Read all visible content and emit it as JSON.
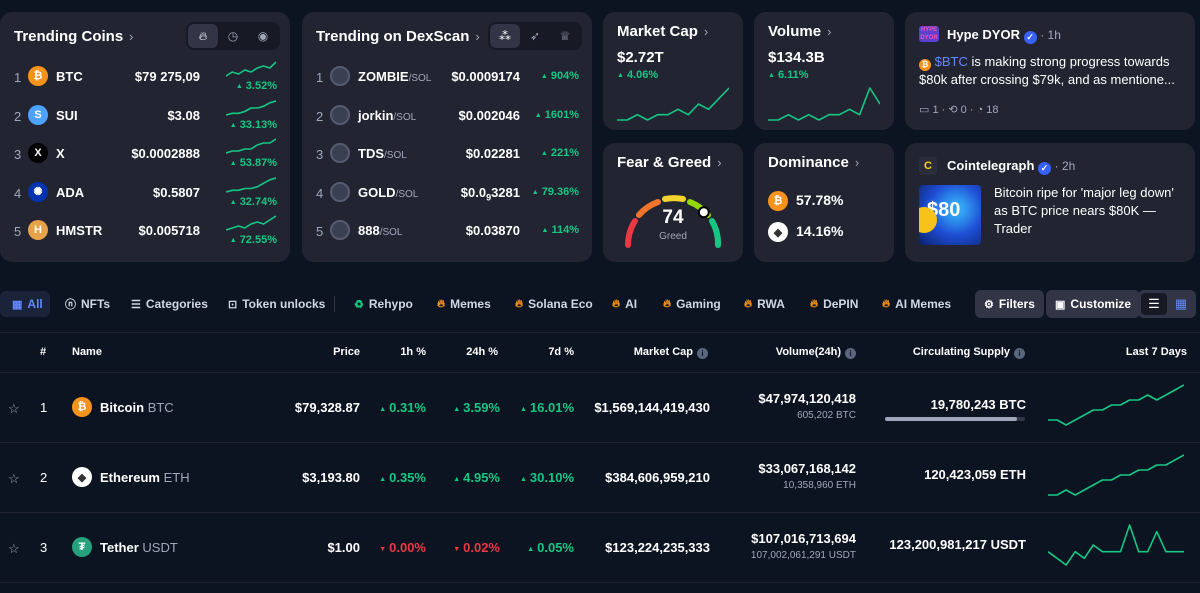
{
  "trending_coins": {
    "title": "Trending Coins",
    "tabs": [
      "flame-icon",
      "clock-icon",
      "eye-icon"
    ],
    "items": [
      {
        "rank": "1",
        "symbol": "BTC",
        "price": "$79 275,09",
        "change": "3.52%",
        "icon_color": "#f7931a",
        "icon_glyph": "₿",
        "spark": [
          2,
          4,
          3,
          5,
          4,
          6,
          7,
          6,
          9
        ]
      },
      {
        "rank": "2",
        "symbol": "SUI",
        "price": "$3.08",
        "change": "33.13%",
        "icon_color": "#4da2ff",
        "icon_glyph": "S",
        "spark": [
          1,
          2,
          2,
          3,
          5,
          5,
          6,
          8,
          9
        ]
      },
      {
        "rank": "3",
        "symbol": "X",
        "price": "$0.0002888",
        "change": "53.87%",
        "icon_color": "#000000",
        "icon_glyph": "X",
        "spark": [
          2,
          3,
          3,
          4,
          4,
          6,
          7,
          7,
          9
        ]
      },
      {
        "rank": "4",
        "symbol": "ADA",
        "price": "$0.5807",
        "change": "32.74%",
        "icon_color": "#0033ad",
        "icon_glyph": "✺",
        "spark": [
          1,
          2,
          2,
          3,
          3,
          4,
          6,
          8,
          9
        ]
      },
      {
        "rank": "5",
        "symbol": "HMSTR",
        "price": "$0.005718",
        "change": "72.55%",
        "icon_color": "#e8a24a",
        "icon_glyph": "H",
        "spark": [
          2,
          3,
          4,
          3,
          5,
          6,
          5,
          7,
          9
        ]
      }
    ]
  },
  "dexscan": {
    "title": "Trending on DexScan",
    "items": [
      {
        "rank": "1",
        "name": "ZOMBIE",
        "chain": "/SOL",
        "price": "$0.0009174",
        "change": "904%"
      },
      {
        "rank": "2",
        "name": "jorkin",
        "chain": "/SOL",
        "price": "$0.002046",
        "change": "1601%"
      },
      {
        "rank": "3",
        "name": "TDS",
        "chain": "/SOL",
        "price": "$0.02281",
        "change": "221%"
      },
      {
        "rank": "4",
        "name": "GOLD",
        "chain": "/SOL",
        "price": "$0.0",
        "price_sub": "9",
        "price_tail": "3281",
        "change": "79.36%"
      },
      {
        "rank": "5",
        "name": "888",
        "chain": "/SOL",
        "price": "$0.03870",
        "change": "114%"
      }
    ]
  },
  "market_cap": {
    "title": "Market Cap",
    "value": "$2.72T",
    "change": "4.06%",
    "spark": [
      3,
      3,
      4,
      3,
      4,
      4,
      5,
      4,
      6,
      5,
      7,
      9
    ]
  },
  "volume": {
    "title": "Volume",
    "value": "$134.3B",
    "change": "6.11%",
    "spark": [
      2,
      2,
      3,
      2,
      3,
      2,
      3,
      3,
      4,
      3,
      8,
      5
    ]
  },
  "fear_greed": {
    "title": "Fear & Greed",
    "value": "74",
    "label": "Greed",
    "level": 74
  },
  "dominance": {
    "title": "Dominance",
    "btc": "57.78%",
    "eth": "14.16%"
  },
  "news": [
    {
      "source": "Hype DYOR",
      "time": "· 1h",
      "tag": "$BTC",
      "text": " is making strong progress towards $80k after crossing $79k, and as mentione...",
      "comments": "1",
      "reposts": "0",
      "views": "18"
    },
    {
      "source": "Cointelegraph",
      "time": "· 2h",
      "text": "Bitcoin ripe for 'major leg down' as BTC price nears $80K — Trader",
      "thumb_text": "$80"
    }
  ],
  "filters": {
    "all": "All",
    "nfts": "NFTs",
    "categories": "Categories",
    "token_unlocks": "Token unlocks",
    "rehypo": "Rehypo",
    "memes": "Memes",
    "solana": "Solana Eco",
    "ai": "AI",
    "gaming": "Gaming",
    "rwa": "RWA",
    "depin": "DePIN",
    "ai_memes": "AI Memes",
    "filters_btn": "Filters",
    "customize_btn": "Customize"
  },
  "table": {
    "headers": {
      "rank": "#",
      "name": "Name",
      "price": "Price",
      "h1": "1h %",
      "h24": "24h %",
      "d7": "7d %",
      "mcap": "Market Cap",
      "vol": "Volume(24h)",
      "supply": "Circulating Supply",
      "last7": "Last 7 Days"
    },
    "rows": [
      {
        "rank": "1",
        "name": "Bitcoin",
        "symbol": "BTC",
        "price": "$79,328.87",
        "h1": "0.31%",
        "h1_dir": "up",
        "h24": "3.59%",
        "h24_dir": "up",
        "d7": "16.01%",
        "d7_dir": "up",
        "mcap": "$1,569,144,419,430",
        "vol": "$47,974,120,418",
        "vol_sub": "605,202 BTC",
        "supply": "19,780,243 BTC",
        "supply_fill": 0.94,
        "icon_color": "#f7931a",
        "icon_glyph": "₿",
        "spark": [
          3,
          3,
          2,
          3,
          4,
          5,
          5,
          6,
          6,
          7,
          7,
          8,
          7,
          8,
          9,
          10
        ]
      },
      {
        "rank": "2",
        "name": "Ethereum",
        "symbol": "ETH",
        "price": "$3,193.80",
        "h1": "0.35%",
        "h1_dir": "up",
        "h24": "4.95%",
        "h24_dir": "up",
        "d7": "30.10%",
        "d7_dir": "up",
        "mcap": "$384,606,959,210",
        "vol": "$33,067,168,142",
        "vol_sub": "10,358,960 ETH",
        "supply": "120,423,059 ETH",
        "supply_fill": null,
        "icon_color": "#ffffff",
        "icon_glyph": "◆",
        "spark": [
          2,
          2,
          3,
          2,
          3,
          4,
          5,
          5,
          6,
          6,
          7,
          7,
          8,
          8,
          9,
          10
        ]
      },
      {
        "rank": "3",
        "name": "Tether",
        "symbol": "USDT",
        "price": "$1.00",
        "h1": "0.00%",
        "h1_dir": "down",
        "h24": "0.02%",
        "h24_dir": "down",
        "d7": "0.05%",
        "d7_dir": "up",
        "mcap": "$123,224,235,333",
        "vol": "$107,016,713,694",
        "vol_sub": "107,002,061,291 USDT",
        "supply": "123,200,981,217 USDT",
        "supply_fill": null,
        "icon_color": "#26a17b",
        "icon_glyph": "₮",
        "spark": [
          5,
          4,
          3,
          5,
          4,
          6,
          5,
          5,
          5,
          9,
          5,
          5,
          8,
          5,
          5,
          5
        ]
      }
    ]
  }
}
